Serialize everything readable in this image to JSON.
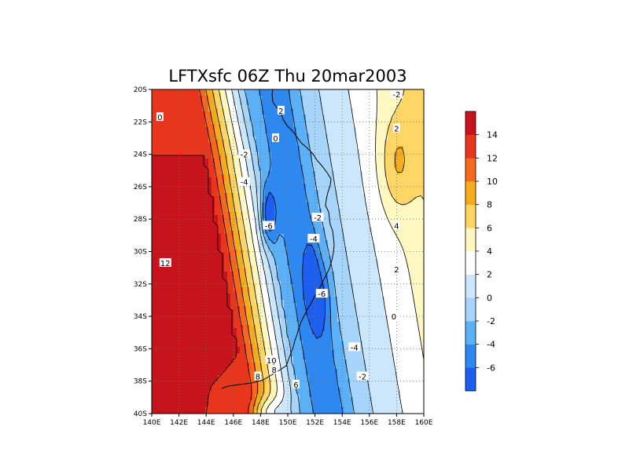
{
  "chart_data": {
    "type": "heatmap",
    "title": "LFTXsfc 06Z Thu 20mar2003",
    "xlabel": "",
    "ylabel": "",
    "x_range": [
      140,
      160
    ],
    "y_range": [
      -40,
      -20
    ],
    "x_ticks": [
      "140E",
      "142E",
      "144E",
      "146E",
      "148E",
      "150E",
      "152E",
      "154E",
      "156E",
      "158E",
      "160E"
    ],
    "y_ticks": [
      "20S",
      "22S",
      "24S",
      "26S",
      "28S",
      "30S",
      "32S",
      "34S",
      "36S",
      "38S",
      "40S"
    ],
    "grid": true,
    "grid_style": "dotted",
    "colorbar": {
      "placement": "right",
      "levels": [
        -6,
        -4,
        -2,
        0,
        2,
        4,
        6,
        8,
        10,
        12,
        14
      ],
      "labels": [
        "-6",
        "-4",
        "-2",
        "0",
        "2",
        "4",
        "6",
        "8",
        "10",
        "12",
        "14"
      ],
      "colors": [
        "#1c5ff0",
        "#2f88f0",
        "#5cb0f7",
        "#a6d4fa",
        "#cce6fc",
        "#ffffff",
        "#fff8c0",
        "#ffd666",
        "#f6ab1c",
        "#f56a1e",
        "#e8361d",
        "#c6131c"
      ]
    },
    "contour_labels": [
      {
        "text": "-2",
        "lon": 158.0,
        "lat": -20.3
      },
      {
        "text": "0",
        "lon": 140.6,
        "lat": -21.7
      },
      {
        "text": "2",
        "lon": 149.5,
        "lat": -21.3
      },
      {
        "text": "0",
        "lon": 149.1,
        "lat": -23.0
      },
      {
        "text": "2",
        "lon": 158.0,
        "lat": -22.4
      },
      {
        "text": "-2",
        "lon": 146.8,
        "lat": -24.0
      },
      {
        "text": "-4",
        "lon": 146.8,
        "lat": -25.7
      },
      {
        "text": "-2",
        "lon": 152.2,
        "lat": -27.9
      },
      {
        "text": "-6",
        "lon": 148.6,
        "lat": -28.4
      },
      {
        "text": "4",
        "lon": 158.0,
        "lat": -28.4
      },
      {
        "text": "-4",
        "lon": 151.9,
        "lat": -29.2
      },
      {
        "text": "12",
        "lon": 141.0,
        "lat": -30.7
      },
      {
        "text": "2",
        "lon": 158.0,
        "lat": -31.1
      },
      {
        "text": "-6",
        "lon": 152.5,
        "lat": -32.6
      },
      {
        "text": "0",
        "lon": 157.8,
        "lat": -34.0
      },
      {
        "text": "-4",
        "lon": 154.9,
        "lat": -35.9
      },
      {
        "text": "10",
        "lon": 148.8,
        "lat": -36.7
      },
      {
        "text": "8",
        "lon": 149.0,
        "lat": -37.3
      },
      {
        "text": "-2",
        "lon": 155.5,
        "lat": -37.7
      },
      {
        "text": "8",
        "lon": 147.8,
        "lat": -37.7
      },
      {
        "text": "6",
        "lon": 150.6,
        "lat": -38.2
      }
    ],
    "features": [
      {
        "name": "min-low",
        "kind": "min",
        "lon": 148.6,
        "lat": -27.8,
        "amp": 6.0,
        "sx": 0.55,
        "sy": 1.7
      },
      {
        "name": "min-mid",
        "kind": "min",
        "lon": 151.7,
        "lat": -31.5,
        "amp": 3.6,
        "sx": 0.5,
        "sy": 2.0
      },
      {
        "name": "trough-axis",
        "kind": "min",
        "lon": 152.4,
        "lat": -33.0,
        "amp": 2.8,
        "sx": 0.7,
        "sy": 2.2
      },
      {
        "name": "hot-pocket",
        "kind": "max",
        "lon": 142.0,
        "lat": -36.5,
        "amp": 2.0,
        "sx": 1.0,
        "sy": 0.7
      },
      {
        "name": "hot-corner",
        "kind": "max",
        "lon": 140.3,
        "lat": -39.3,
        "amp": 3.0,
        "sx": 1.2,
        "sy": 1.2
      },
      {
        "name": "cool-tongue-east",
        "kind": "max",
        "lon": 158.0,
        "lat": -24.6,
        "amp": 3.8,
        "sx": 1.3,
        "sy": 3.0
      },
      {
        "name": "cool-pocket-south",
        "kind": "min",
        "lon": 148.5,
        "lat": -40.0,
        "amp": 5.0,
        "sx": 1.4,
        "sy": 0.9
      }
    ]
  }
}
